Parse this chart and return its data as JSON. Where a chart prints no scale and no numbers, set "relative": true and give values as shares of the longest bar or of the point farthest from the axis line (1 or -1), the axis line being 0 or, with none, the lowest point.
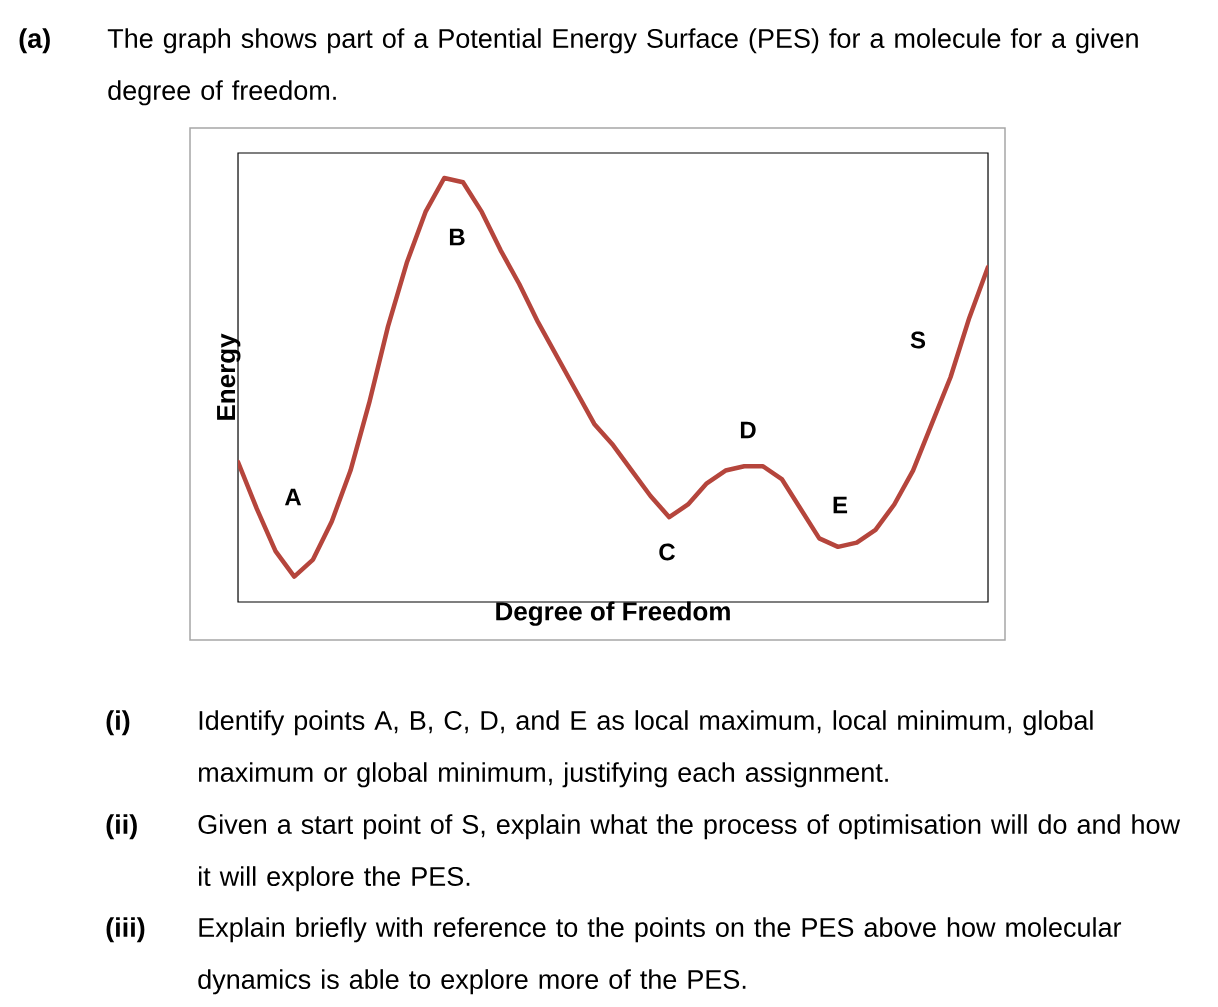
{
  "chart_data": {
    "type": "line",
    "title": "The graph shows part of a Potential Energy Surface (PES) for a molecule for a given degree of freedom.",
    "xlabel": "Degree of Freedom",
    "ylabel": "Energy",
    "relative": true,
    "color": "#b5453c",
    "categories": [
      null,
      null,
      null,
      null,
      null,
      null,
      null,
      null,
      null,
      null,
      null,
      null,
      null,
      null,
      null,
      null,
      null,
      null,
      null,
      null,
      null,
      null,
      null,
      null,
      null,
      null,
      null,
      null,
      null,
      null,
      null,
      null,
      null,
      null,
      null,
      null,
      null,
      null,
      null,
      null,
      null
    ],
    "values": [
      0.33,
      0.22,
      0.12,
      0.06,
      0.1,
      0.19,
      0.31,
      0.47,
      0.65,
      0.8,
      0.92,
      1.0,
      0.99,
      0.92,
      0.83,
      0.75,
      0.66,
      0.58,
      0.5,
      0.42,
      0.37,
      0.31,
      0.25,
      0.2,
      0.23,
      0.28,
      0.31,
      0.32,
      0.32,
      0.29,
      0.22,
      0.15,
      0.13,
      0.14,
      0.17,
      0.23,
      0.31,
      0.42,
      0.53,
      0.67,
      0.79
    ],
    "annotations": [
      "A",
      "B",
      "C",
      "D",
      "E",
      "S",
      "(a)",
      "(i)",
      "Identify points A, B, C, D, and E as local maximum, local minimum, global maximum or global minimum, justifying each assignment.",
      "(ii)",
      "Given a start point of S, explain what the process of optimisation will do and how it will explore the PES.",
      "(iii)",
      "Explain briefly with reference to the points on the PES above how molecular dynamics is able to explore more of the PES."
    ]
  }
}
